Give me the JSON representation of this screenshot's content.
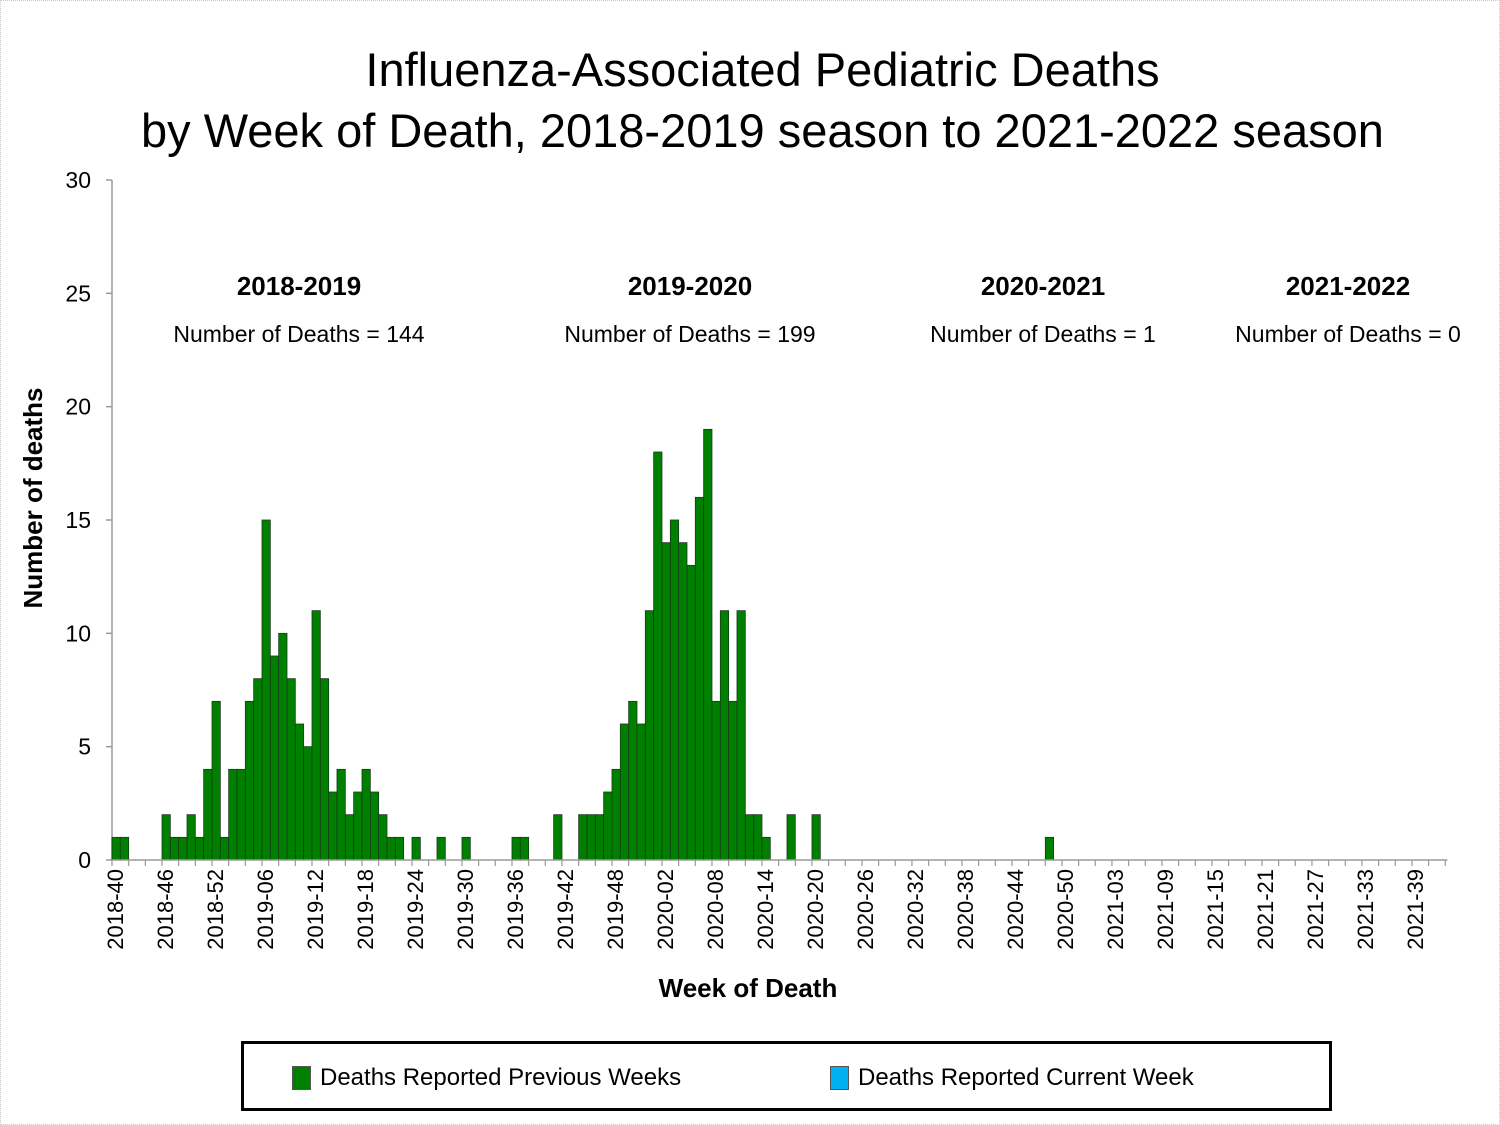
{
  "chart_data": {
    "type": "bar",
    "title": "Influenza-Associated Pediatric Deaths",
    "subtitle": "by Week of Death, 2018-2019 season to 2021-2022 season",
    "xlabel": "Week of Death",
    "ylabel": "Number of deaths",
    "ylim": [
      0,
      30
    ],
    "yticks": [
      0,
      5,
      10,
      15,
      20,
      25,
      30
    ],
    "grid": false,
    "legend_position": "bottom",
    "categories": [
      "2018-40",
      "2018-41",
      "2018-42",
      "2018-43",
      "2018-44",
      "2018-45",
      "2018-46",
      "2018-47",
      "2018-48",
      "2018-49",
      "2018-50",
      "2018-51",
      "2018-52",
      "2019-01",
      "2019-02",
      "2019-03",
      "2019-04",
      "2019-05",
      "2019-06",
      "2019-07",
      "2019-08",
      "2019-09",
      "2019-10",
      "2019-11",
      "2019-12",
      "2019-13",
      "2019-14",
      "2019-15",
      "2019-16",
      "2019-17",
      "2019-18",
      "2019-19",
      "2019-20",
      "2019-21",
      "2019-22",
      "2019-23",
      "2019-24",
      "2019-25",
      "2019-26",
      "2019-27",
      "2019-28",
      "2019-29",
      "2019-30",
      "2019-31",
      "2019-32",
      "2019-33",
      "2019-34",
      "2019-35",
      "2019-36",
      "2019-37",
      "2019-38",
      "2019-39",
      "2019-40",
      "2019-41",
      "2019-42",
      "2019-43",
      "2019-44",
      "2019-45",
      "2019-46",
      "2019-47",
      "2019-48",
      "2019-49",
      "2019-50",
      "2019-51",
      "2019-52",
      "2020-01",
      "2020-02",
      "2020-03",
      "2020-04",
      "2020-05",
      "2020-06",
      "2020-07",
      "2020-08",
      "2020-09",
      "2020-10",
      "2020-11",
      "2020-12",
      "2020-13",
      "2020-14",
      "2020-15",
      "2020-16",
      "2020-17",
      "2020-18",
      "2020-19",
      "2020-20",
      "2020-21",
      "2020-22",
      "2020-23",
      "2020-24",
      "2020-25",
      "2020-26",
      "2020-27",
      "2020-28",
      "2020-29",
      "2020-30",
      "2020-31",
      "2020-32",
      "2020-33",
      "2020-34",
      "2020-35",
      "2020-36",
      "2020-37",
      "2020-38",
      "2020-39",
      "2020-40",
      "2020-41",
      "2020-42",
      "2020-43",
      "2020-44",
      "2020-45",
      "2020-46",
      "2020-47",
      "2020-48",
      "2020-49",
      "2020-50",
      "2020-51",
      "2020-52",
      "2020-53",
      "2021-01",
      "2021-02",
      "2021-03",
      "2021-04",
      "2021-05",
      "2021-06",
      "2021-07",
      "2021-08",
      "2021-09",
      "2021-10",
      "2021-11",
      "2021-12",
      "2021-13",
      "2021-14",
      "2021-15",
      "2021-16",
      "2021-17",
      "2021-18",
      "2021-19",
      "2021-20",
      "2021-21",
      "2021-22",
      "2021-23",
      "2021-24",
      "2021-25",
      "2021-26",
      "2021-27",
      "2021-28",
      "2021-29",
      "2021-30",
      "2021-31",
      "2021-32",
      "2021-33",
      "2021-34",
      "2021-35",
      "2021-36",
      "2021-37",
      "2021-38",
      "2021-39",
      "2021-40",
      "2021-41",
      "2021-42"
    ],
    "tick_labels": [
      "2018-40",
      "2018-46",
      "2018-52",
      "2019-06",
      "2019-12",
      "2019-18",
      "2019-24",
      "2019-30",
      "2019-36",
      "2019-42",
      "2019-48",
      "2020-02",
      "2020-08",
      "2020-14",
      "2020-20",
      "2020-26",
      "2020-32",
      "2020-38",
      "2020-44",
      "2020-50",
      "2021-03",
      "2021-09",
      "2021-15",
      "2021-21",
      "2021-27",
      "2021-33",
      "2021-39"
    ],
    "series": [
      {
        "name": "Deaths Reported Previous Weeks",
        "color": "#008000",
        "values": [
          1,
          1,
          0,
          0,
          0,
          0,
          2,
          1,
          1,
          2,
          1,
          4,
          7,
          1,
          4,
          4,
          7,
          8,
          15,
          9,
          10,
          8,
          6,
          5,
          11,
          8,
          3,
          4,
          2,
          3,
          4,
          3,
          2,
          1,
          1,
          0,
          1,
          0,
          0,
          1,
          0,
          0,
          1,
          0,
          0,
          0,
          0,
          0,
          1,
          1,
          0,
          0,
          0,
          2,
          0,
          0,
          2,
          2,
          2,
          3,
          4,
          6,
          7,
          6,
          11,
          18,
          14,
          15,
          14,
          13,
          16,
          19,
          7,
          11,
          7,
          11,
          2,
          2,
          1,
          0,
          0,
          2,
          0,
          0,
          2,
          0,
          0,
          0,
          0,
          0,
          0,
          0,
          0,
          0,
          0,
          0,
          0,
          0,
          0,
          0,
          0,
          0,
          0,
          0,
          0,
          0,
          0,
          0,
          0,
          0,
          0,
          0,
          1,
          0,
          0,
          0,
          0,
          0,
          0,
          0,
          0,
          0,
          0,
          0,
          0,
          0,
          0,
          0,
          0,
          0,
          0,
          0,
          0,
          0,
          0,
          0,
          0,
          0,
          0,
          0,
          0,
          0,
          0,
          0,
          0,
          0,
          0,
          0,
          0,
          0,
          0,
          0,
          0,
          0,
          0,
          0,
          0,
          0,
          0,
          0
        ]
      },
      {
        "name": "Deaths Reported Current Week",
        "color": "#00b0f0",
        "values": []
      }
    ],
    "annotations": [
      {
        "season": "2018-2019",
        "text": "Number of Deaths = 144",
        "anchor": "2018-52"
      },
      {
        "season": "2019-2020",
        "text": "Number of Deaths = 199",
        "anchor": "2019-51"
      },
      {
        "season": "2020-2021",
        "text": "Number of Deaths = 1",
        "anchor": "2020-52"
      },
      {
        "season": "2021-2022",
        "text": "Number of Deaths = 0",
        "anchor": "2021-52"
      }
    ]
  }
}
